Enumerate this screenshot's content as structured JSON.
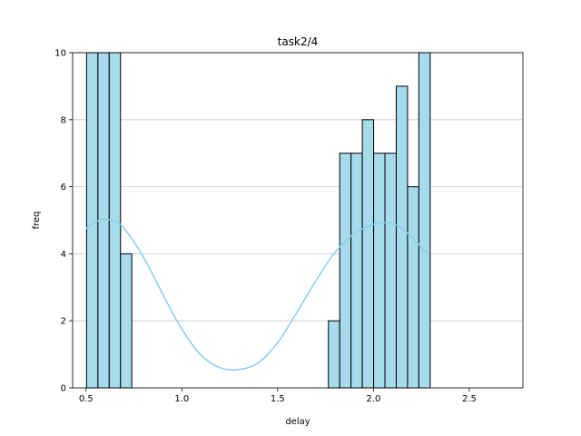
{
  "chart_data": {
    "type": "bar",
    "title": "task2/4",
    "xlabel": "delay",
    "ylabel": "freq",
    "xlim": [
      0.43,
      2.78
    ],
    "ylim": [
      0,
      10
    ],
    "xticks": [
      "0.5",
      "1.0",
      "1.5",
      "2.0",
      "2.5"
    ],
    "yticks": [
      "0",
      "2",
      "4",
      "6",
      "8",
      "10"
    ],
    "grid": "y",
    "bar_color": "#a6dbeb",
    "bar_edge_color": "#000000",
    "kde_color": "#87ceeb",
    "bin_width": 0.059,
    "bins": [
      {
        "x0": 0.503,
        "count": 10
      },
      {
        "x0": 0.562,
        "count": 10
      },
      {
        "x0": 0.621,
        "count": 10
      },
      {
        "x0": 0.68,
        "count": 4
      },
      {
        "x0": 1.765,
        "count": 2
      },
      {
        "x0": 1.824,
        "count": 7
      },
      {
        "x0": 1.883,
        "count": 7
      },
      {
        "x0": 1.942,
        "count": 8
      },
      {
        "x0": 2.001,
        "count": 7
      },
      {
        "x0": 2.06,
        "count": 7
      },
      {
        "x0": 2.119,
        "count": 9
      },
      {
        "x0": 2.178,
        "count": 6
      },
      {
        "x0": 2.237,
        "count": 10
      }
    ],
    "kde": {
      "x": [
        0.5,
        0.55,
        0.6,
        0.65,
        0.7,
        0.8,
        0.9,
        1.0,
        1.1,
        1.2,
        1.3,
        1.4,
        1.5,
        1.6,
        1.7,
        1.8,
        1.9,
        2.0,
        2.05,
        2.1,
        2.15,
        2.2,
        2.25,
        2.29
      ],
      "y": [
        4.75,
        4.95,
        5.03,
        4.97,
        4.75,
        3.9,
        2.8,
        1.75,
        0.98,
        0.6,
        0.55,
        0.75,
        1.35,
        2.25,
        3.2,
        4.05,
        4.6,
        4.88,
        4.93,
        4.9,
        4.75,
        4.5,
        4.2,
        3.95
      ]
    }
  }
}
